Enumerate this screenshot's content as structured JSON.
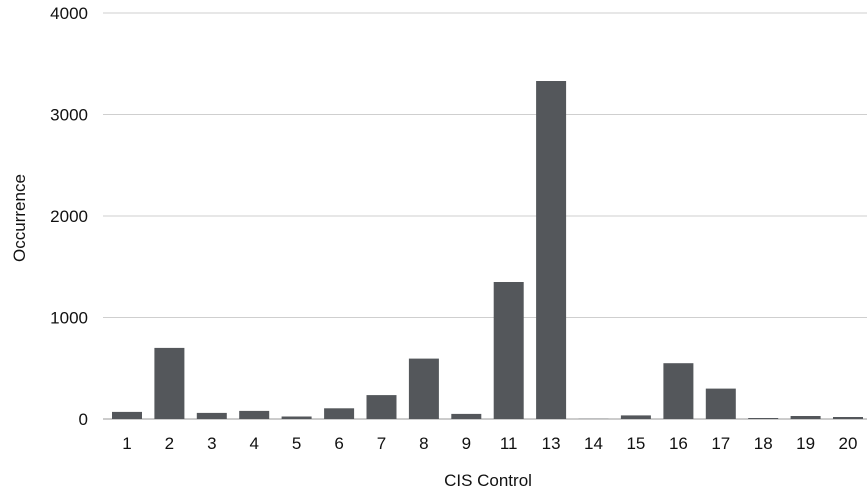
{
  "chart_data": {
    "type": "bar",
    "title": "",
    "xlabel": "CIS Control",
    "ylabel": "Occurrence",
    "categories": [
      "1",
      "2",
      "3",
      "4",
      "5",
      "6",
      "7",
      "8",
      "9",
      "11",
      "13",
      "14",
      "15",
      "16",
      "17",
      "18",
      "19",
      "20"
    ],
    "values": [
      70,
      700,
      60,
      80,
      25,
      105,
      235,
      595,
      50,
      1350,
      3330,
      2,
      35,
      550,
      300,
      10,
      30,
      20
    ],
    "ylim": [
      0,
      4000
    ],
    "yticks": [
      "0",
      "1000",
      "2000",
      "3000",
      "4000"
    ],
    "grid": true,
    "legend": "none",
    "colors": {
      "bar": "#54575b",
      "gridline": "#cfcfcf",
      "baseline": "#9a9a9a",
      "text": "#111111"
    }
  }
}
